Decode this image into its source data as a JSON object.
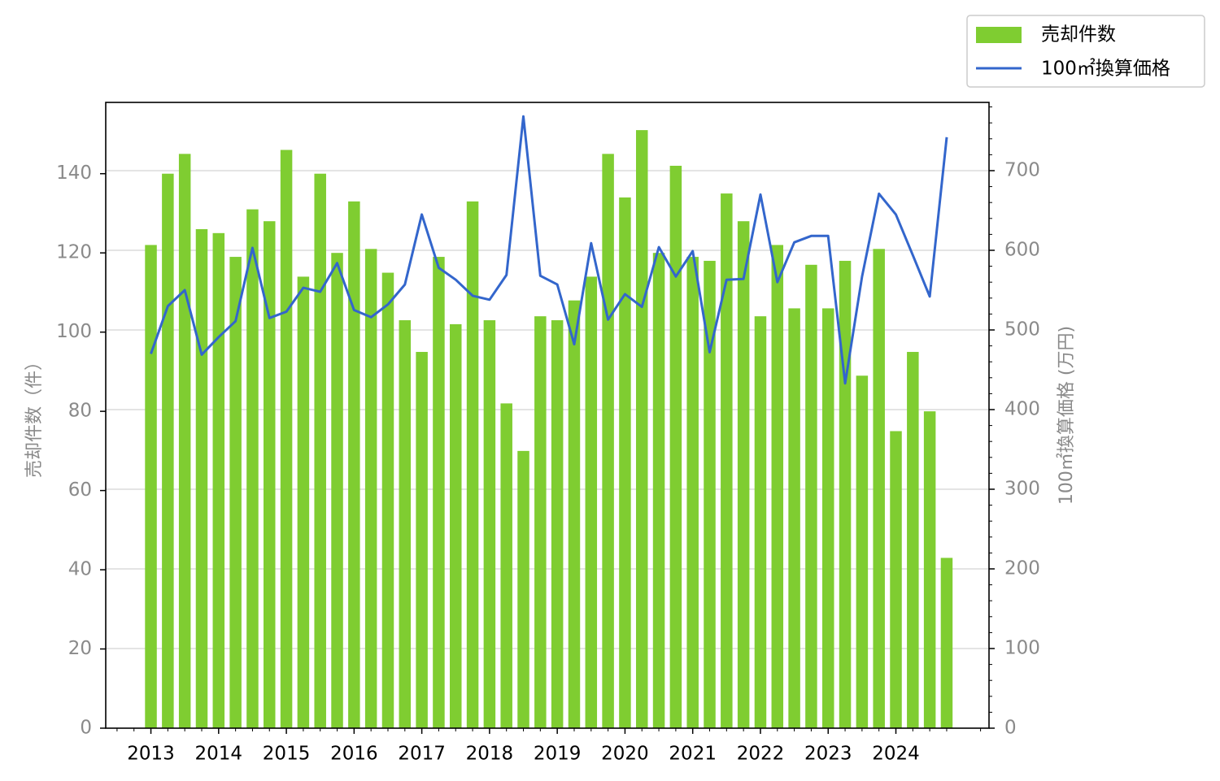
{
  "chart_data": {
    "type": "bar",
    "x_ticks": [
      "2013",
      "2014",
      "2015",
      "2016",
      "2017",
      "2018",
      "2019",
      "2020",
      "2021",
      "2022",
      "2023",
      "2024"
    ],
    "x_range": [
      2012.333,
      2025.375
    ],
    "series": [
      {
        "name": "売却件数",
        "type": "bar",
        "axis": "left",
        "x": [
          2013.0,
          2013.25,
          2013.5,
          2013.75,
          2014.0,
          2014.25,
          2014.5,
          2014.75,
          2015.0,
          2015.25,
          2015.5,
          2015.75,
          2016.0,
          2016.25,
          2016.5,
          2016.75,
          2017.0,
          2017.25,
          2017.5,
          2017.75,
          2018.0,
          2018.25,
          2018.5,
          2018.75,
          2019.0,
          2019.25,
          2019.5,
          2019.75,
          2020.0,
          2020.25,
          2020.5,
          2020.75,
          2021.0,
          2021.25,
          2021.5,
          2021.75,
          2022.0,
          2022.25,
          2022.5,
          2022.75,
          2023.0,
          2023.25,
          2023.5,
          2023.75,
          2024.0,
          2024.25,
          2024.5,
          2024.75
        ],
        "values": [
          122,
          140,
          145,
          126,
          125,
          119,
          131,
          128,
          146,
          114,
          140,
          120,
          133,
          121,
          115,
          103,
          95,
          119,
          102,
          133,
          103,
          82,
          70,
          104,
          103,
          108,
          114,
          145,
          134,
          151,
          120,
          142,
          119,
          118,
          135,
          128,
          104,
          122,
          106,
          117,
          106,
          118,
          89,
          121,
          75,
          95,
          80,
          43
        ]
      },
      {
        "name": "100㎡換算価格",
        "type": "line",
        "axis": "right",
        "x": [
          2013.0,
          2013.25,
          2013.5,
          2013.75,
          2014.0,
          2014.25,
          2014.5,
          2014.75,
          2015.0,
          2015.25,
          2015.5,
          2015.75,
          2016.0,
          2016.25,
          2016.5,
          2016.75,
          2017.0,
          2017.25,
          2017.5,
          2017.75,
          2018.0,
          2018.25,
          2018.5,
          2018.75,
          2019.0,
          2019.25,
          2019.5,
          2019.75,
          2020.0,
          2020.25,
          2020.5,
          2020.75,
          2021.0,
          2021.25,
          2021.5,
          2021.75,
          2022.0,
          2022.25,
          2022.5,
          2022.75,
          2023.0,
          2023.25,
          2023.5,
          2023.75,
          2024.0,
          2024.25,
          2024.5,
          2024.75
        ],
        "values": [
          470,
          530,
          550,
          469,
          491,
          511,
          603,
          515,
          523,
          553,
          548,
          584,
          525,
          516,
          532,
          557,
          645,
          578,
          563,
          543,
          538,
          569,
          768,
          568,
          557,
          482,
          609,
          513,
          545,
          529,
          604,
          567,
          599,
          472,
          563,
          564,
          670,
          560,
          610,
          618,
          618,
          433,
          567,
          671,
          645,
          594,
          542,
          742
        ]
      }
    ],
    "y_left": {
      "label": "売却件数（件）",
      "lim": [
        0,
        158
      ],
      "ticks": [
        0,
        20,
        40,
        60,
        80,
        100,
        120,
        140
      ]
    },
    "y_right": {
      "label": "100㎡換算価格 (万円)",
      "lim": [
        0,
        785.7
      ],
      "ticks": [
        0,
        100,
        200,
        300,
        400,
        500,
        600,
        700
      ]
    },
    "legend": {
      "placement": "top-right",
      "entries": [
        "売却件数",
        "100㎡換算価格"
      ]
    },
    "grid": "horizontal",
    "colors": {
      "bar": "#7fcd31",
      "line": "#3366cc",
      "grid": "#d3d3d3",
      "tick_text": "#8a8a8a",
      "axis": "#000000"
    }
  }
}
